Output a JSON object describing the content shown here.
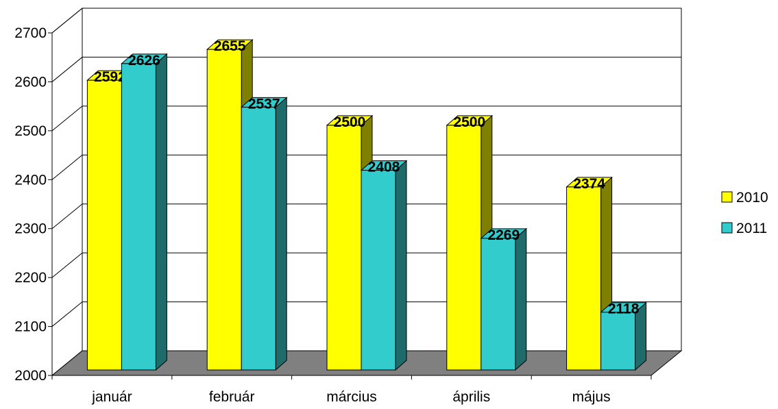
{
  "chart_data": {
    "type": "bar",
    "style": "3d-clustered-column",
    "categories": [
      "január",
      "február",
      "március",
      "április",
      "május"
    ],
    "series": [
      {
        "name": "2010",
        "values": [
          2592,
          2655,
          2500,
          2500,
          2374
        ],
        "color": "#ffff00",
        "side_color": "#808000"
      },
      {
        "name": "2011",
        "values": [
          2626,
          2537,
          2408,
          2269,
          2118
        ],
        "color": "#33cccc",
        "side_color": "#1f6b6b"
      }
    ],
    "title": "",
    "xlabel": "",
    "ylabel": "",
    "ylim": [
      2000,
      2700
    ],
    "yticks": [
      2000,
      2100,
      2200,
      2300,
      2400,
      2500,
      2600,
      2700
    ],
    "grid": true,
    "legend": "right",
    "floor_color": "#808080"
  }
}
